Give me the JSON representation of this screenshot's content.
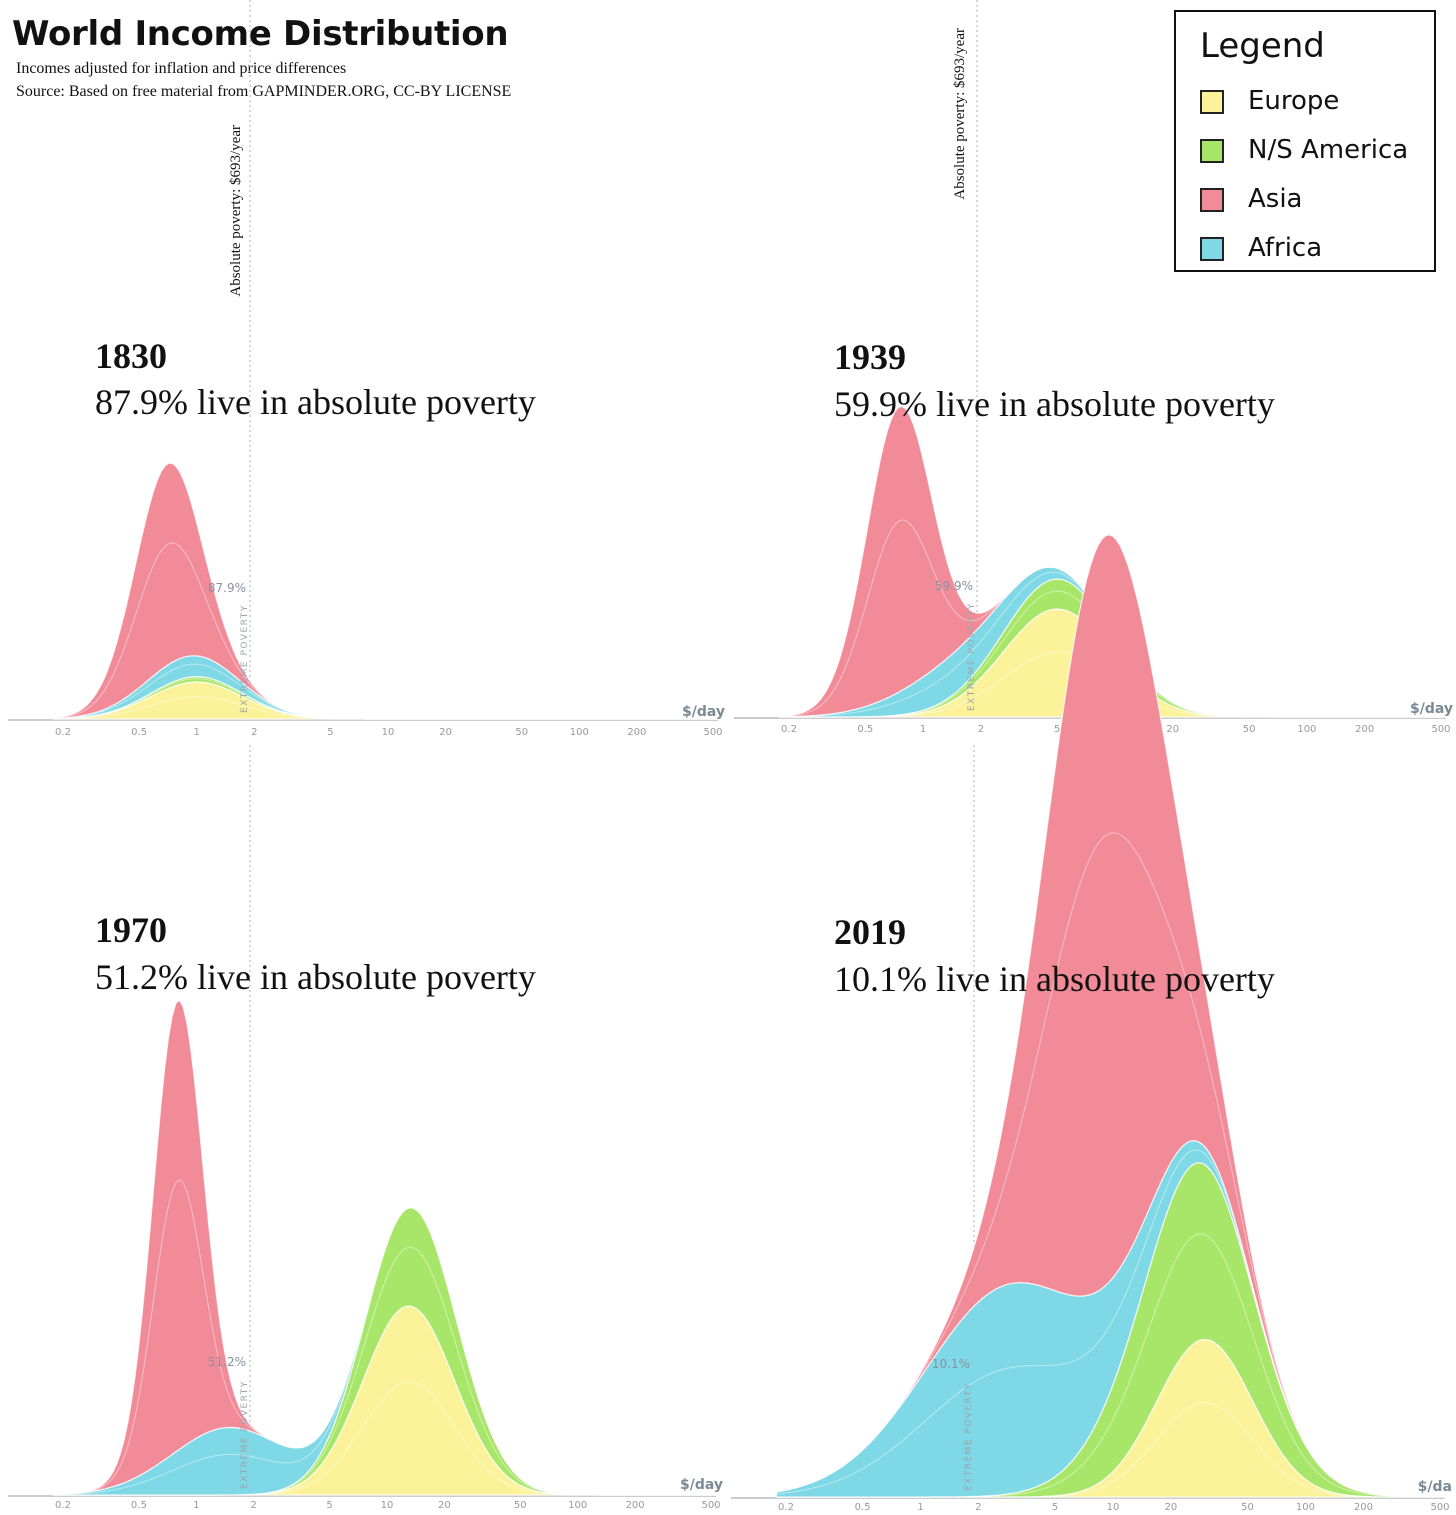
{
  "title": "World Income Distribution",
  "subtitle_lines": [
    "Incomes adjusted for inflation and price differences",
    "Source: Based on free material from GAPMINDER.ORG, CC-BY LICENSE"
  ],
  "legend": {
    "title": "Legend",
    "items": [
      {
        "label": "Europe",
        "color": "#fbf29a"
      },
      {
        "label": "N/S America",
        "color": "#a8e66a"
      },
      {
        "label": "Asia",
        "color": "#f28b98"
      },
      {
        "label": "Africa",
        "color": "#7fd8e6"
      }
    ]
  },
  "poverty_line_label": "Absolute poverty: $693/year",
  "extreme_poverty_label": "EXTREME POVERTY",
  "colors": {
    "europe": "#fbf29a",
    "america": "#a8e66a",
    "asia": "#f28b98",
    "africa": "#7fd8e6",
    "axis": "#cccccc",
    "tick_text": "#999999"
  },
  "chart_data": [
    {
      "type": "area",
      "year": "1830",
      "caption": "87.9% live in absolute poverty",
      "poverty_share_label": "87.9%",
      "xlabel": "$/day",
      "x_scale": "log",
      "x_ticks": [
        "0.2",
        "0.5",
        "1",
        "2",
        "5",
        "10",
        "20",
        "50",
        "100",
        "200",
        "500"
      ],
      "poverty_line_x": 1.9,
      "series": [
        {
          "name": "Europe",
          "peak_x": 1.0,
          "peak_height": 0.14,
          "spread_log10": 0.24
        },
        {
          "name": "N/S America",
          "peak_x": 1.0,
          "peak_height": 0.02,
          "spread_log10": 0.24
        },
        {
          "name": "Africa",
          "peak_x": 0.9,
          "peak_height": 0.08,
          "spread_log10": 0.24
        },
        {
          "name": "Asia",
          "peak_x": 0.7,
          "peak_height": 0.76,
          "spread_log10": 0.17
        }
      ]
    },
    {
      "type": "area",
      "year": "1939",
      "caption": "59.9% live in absolute poverty",
      "poverty_share_label": "59.9%",
      "xlabel": "$/day",
      "x_scale": "log",
      "x_ticks": [
        "0.2",
        "0.5",
        "1",
        "2",
        "5",
        "10",
        "20",
        "50",
        "100",
        "200",
        "500"
      ],
      "poverty_line_x": 1.9,
      "series": [
        {
          "name": "Europe",
          "peak_x": 5.0,
          "peak_height": 0.36,
          "spread_log10": 0.28
        },
        {
          "name": "N/S America",
          "peak_x": 5.0,
          "peak_height": 0.1,
          "spread_log10": 0.3
        },
        {
          "name": "Africa",
          "peak_x": 1.6,
          "peak_height": 0.14,
          "spread_log10": 0.3
        },
        {
          "name": "Asia",
          "peak_x": 0.75,
          "peak_height": 0.95,
          "spread_log10": 0.17
        }
      ]
    },
    {
      "type": "area",
      "year": "1970",
      "caption": "51.2% live in absolute poverty",
      "poverty_share_label": "51.2%",
      "xlabel": "$/day",
      "x_scale": "log",
      "x_ticks": [
        "0.2",
        "0.5",
        "1",
        "2",
        "5",
        "10",
        "20",
        "50",
        "100",
        "200",
        "500"
      ],
      "poverty_line_x": 1.9,
      "series": [
        {
          "name": "Europe",
          "peak_x": 13,
          "peak_height": 0.42,
          "spread_log10": 0.24
        },
        {
          "name": "N/S America",
          "peak_x": 14,
          "peak_height": 0.22,
          "spread_log10": 0.24
        },
        {
          "name": "Africa",
          "peak_x": 1.5,
          "peak_height": 0.15,
          "spread_log10": 0.3
        },
        {
          "name": "Asia",
          "peak_x": 0.8,
          "peak_height": 1.0,
          "spread_log10": 0.13
        }
      ]
    },
    {
      "type": "area",
      "year": "2019",
      "caption": "10.1% live in absolute poverty",
      "poverty_share_label": "10.1%",
      "xlabel": "$/da",
      "x_scale": "log",
      "x_ticks": [
        "0.2",
        "0.5",
        "1",
        "2",
        "5",
        "10",
        "20",
        "50",
        "100",
        "200",
        "500"
      ],
      "poverty_line_x": 1.9,
      "series": [
        {
          "name": "Europe",
          "peak_x": 30,
          "peak_height": 0.42,
          "spread_log10": 0.25
        },
        {
          "name": "N/S America",
          "peak_x": 25,
          "peak_height": 0.48,
          "spread_log10": 0.33
        },
        {
          "name": "Africa",
          "peak_x": 3.0,
          "peak_height": 0.56,
          "spread_log10": 0.45
        },
        {
          "name": "Asia",
          "peak_x": 9,
          "peak_height": 2.0,
          "spread_log10": 0.3
        }
      ]
    }
  ]
}
